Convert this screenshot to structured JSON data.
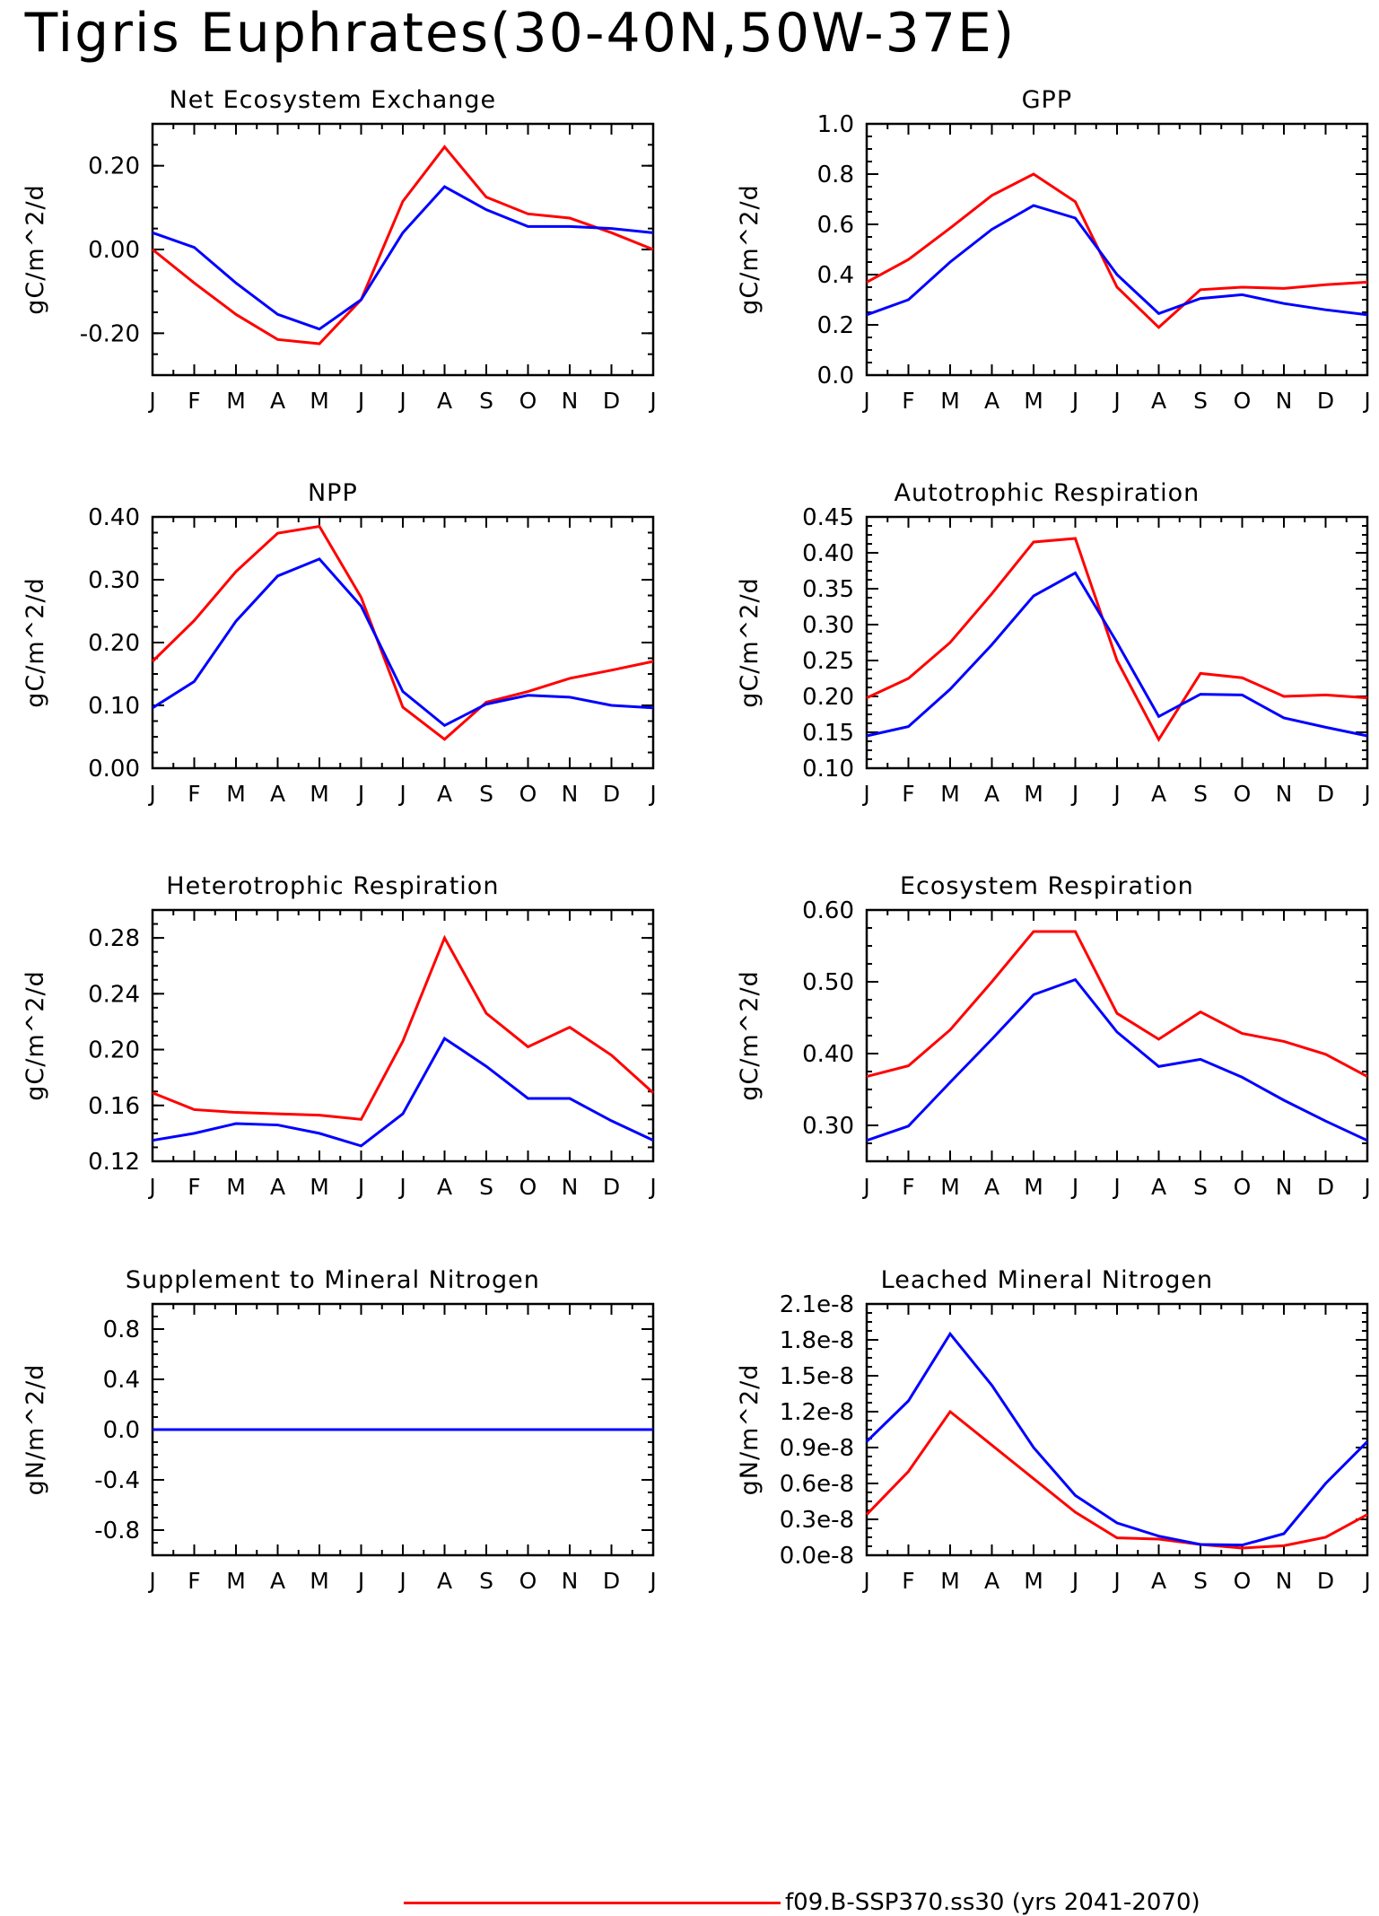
{
  "title": "Tigris Euphrates(30-40N,50W-37E)",
  "legend": {
    "label": "f09.B-SSP370.ss30 (yrs 2041-2070)",
    "color": "#ff0000"
  },
  "colors": {
    "red": "#ff0000",
    "blue": "#0000ff"
  },
  "chart_data": [
    {
      "type": "line",
      "title": "Net Ecosystem Exchange",
      "ylabel": "gC/m^2/d",
      "categories": [
        "J",
        "F",
        "M",
        "A",
        "M",
        "J",
        "J",
        "A",
        "S",
        "O",
        "N",
        "D",
        "J"
      ],
      "ylim": [
        -0.3,
        0.3
      ],
      "yticks": [
        -0.2,
        0.0,
        0.2
      ],
      "ytick_labels": [
        "-0.20",
        "0.00",
        "0.20"
      ],
      "series": [
        {
          "color": "#ff0000",
          "values": [
            0.0,
            -0.08,
            -0.155,
            -0.215,
            -0.225,
            -0.12,
            0.115,
            0.245,
            0.125,
            0.085,
            0.075,
            0.04,
            0.0
          ]
        },
        {
          "color": "#0000ff",
          "values": [
            0.04,
            0.005,
            -0.08,
            -0.155,
            -0.19,
            -0.12,
            0.04,
            0.15,
            0.095,
            0.055,
            0.055,
            0.05,
            0.04
          ]
        }
      ]
    },
    {
      "type": "line",
      "title": "GPP",
      "ylabel": "gC/m^2/d",
      "categories": [
        "J",
        "F",
        "M",
        "A",
        "M",
        "J",
        "J",
        "A",
        "S",
        "O",
        "N",
        "D",
        "J"
      ],
      "ylim": [
        0.0,
        1.0
      ],
      "yticks": [
        0.0,
        0.2,
        0.4,
        0.6,
        0.8,
        1.0
      ],
      "ytick_labels": [
        "0.0",
        "0.2",
        "0.4",
        "0.6",
        "0.8",
        "1.0"
      ],
      "series": [
        {
          "color": "#ff0000",
          "values": [
            0.37,
            0.46,
            0.585,
            0.715,
            0.8,
            0.69,
            0.35,
            0.19,
            0.34,
            0.35,
            0.345,
            0.36,
            0.37
          ]
        },
        {
          "color": "#0000ff",
          "values": [
            0.24,
            0.3,
            0.45,
            0.58,
            0.675,
            0.625,
            0.4,
            0.245,
            0.305,
            0.32,
            0.285,
            0.26,
            0.24
          ]
        }
      ]
    },
    {
      "type": "line",
      "title": "NPP",
      "ylabel": "gC/m^2/d",
      "categories": [
        "J",
        "F",
        "M",
        "A",
        "M",
        "J",
        "J",
        "A",
        "S",
        "O",
        "N",
        "D",
        "J"
      ],
      "ylim": [
        0.0,
        0.4
      ],
      "yticks": [
        0.0,
        0.1,
        0.2,
        0.3,
        0.4
      ],
      "ytick_labels": [
        "0.00",
        "0.10",
        "0.20",
        "0.30",
        "0.40"
      ],
      "series": [
        {
          "color": "#ff0000",
          "values": [
            0.17,
            0.235,
            0.313,
            0.374,
            0.385,
            0.272,
            0.097,
            0.046,
            0.105,
            0.122,
            0.143,
            0.156,
            0.17
          ]
        },
        {
          "color": "#0000ff",
          "values": [
            0.096,
            0.138,
            0.234,
            0.306,
            0.333,
            0.258,
            0.122,
            0.068,
            0.102,
            0.116,
            0.113,
            0.1,
            0.096
          ]
        }
      ]
    },
    {
      "type": "line",
      "title": "Autotrophic Respiration",
      "ylabel": "gC/m^2/d",
      "categories": [
        "J",
        "F",
        "M",
        "A",
        "M",
        "J",
        "J",
        "A",
        "S",
        "O",
        "N",
        "D",
        "J"
      ],
      "ylim": [
        0.1,
        0.45
      ],
      "yticks": [
        0.1,
        0.15,
        0.2,
        0.25,
        0.3,
        0.35,
        0.4,
        0.45
      ],
      "ytick_labels": [
        "0.10",
        "0.15",
        "0.20",
        "0.25",
        "0.30",
        "0.35",
        "0.40",
        "0.45"
      ],
      "series": [
        {
          "color": "#ff0000",
          "values": [
            0.198,
            0.225,
            0.275,
            0.343,
            0.415,
            0.42,
            0.25,
            0.14,
            0.232,
            0.226,
            0.2,
            0.202,
            0.198
          ]
        },
        {
          "color": "#0000ff",
          "values": [
            0.145,
            0.158,
            0.21,
            0.272,
            0.34,
            0.372,
            0.275,
            0.172,
            0.203,
            0.202,
            0.17,
            0.157,
            0.145
          ]
        }
      ]
    },
    {
      "type": "line",
      "title": "Heterotrophic Respiration",
      "ylabel": "gC/m^2/d",
      "categories": [
        "J",
        "F",
        "M",
        "A",
        "M",
        "J",
        "J",
        "A",
        "S",
        "O",
        "N",
        "D",
        "J"
      ],
      "ylim": [
        0.12,
        0.3
      ],
      "yticks": [
        0.12,
        0.16,
        0.2,
        0.24,
        0.28
      ],
      "ytick_labels": [
        "0.12",
        "0.16",
        "0.20",
        "0.24",
        "0.28"
      ],
      "series": [
        {
          "color": "#ff0000",
          "values": [
            0.169,
            0.157,
            0.155,
            0.154,
            0.153,
            0.15,
            0.206,
            0.28,
            0.226,
            0.202,
            0.216,
            0.196,
            0.169
          ]
        },
        {
          "color": "#0000ff",
          "values": [
            0.135,
            0.14,
            0.147,
            0.146,
            0.14,
            0.131,
            0.154,
            0.208,
            0.188,
            0.165,
            0.165,
            0.149,
            0.135
          ]
        }
      ]
    },
    {
      "type": "line",
      "title": "Ecosystem Respiration",
      "ylabel": "gC/m^2/d",
      "categories": [
        "J",
        "F",
        "M",
        "A",
        "M",
        "J",
        "J",
        "A",
        "S",
        "O",
        "N",
        "D",
        "J"
      ],
      "ylim": [
        0.25,
        0.6
      ],
      "yticks": [
        0.3,
        0.4,
        0.5,
        0.6
      ],
      "ytick_labels": [
        "0.30",
        "0.40",
        "0.50",
        "0.60"
      ],
      "series": [
        {
          "color": "#ff0000",
          "values": [
            0.368,
            0.383,
            0.433,
            0.5,
            0.57,
            0.57,
            0.456,
            0.42,
            0.458,
            0.428,
            0.417,
            0.399,
            0.368
          ]
        },
        {
          "color": "#0000ff",
          "values": [
            0.279,
            0.299,
            0.36,
            0.42,
            0.482,
            0.503,
            0.43,
            0.382,
            0.392,
            0.367,
            0.335,
            0.306,
            0.279
          ]
        }
      ]
    },
    {
      "type": "line",
      "title": "Supplement to Mineral Nitrogen",
      "ylabel": "gN/m^2/d",
      "categories": [
        "J",
        "F",
        "M",
        "A",
        "M",
        "J",
        "J",
        "A",
        "S",
        "O",
        "N",
        "D",
        "J"
      ],
      "ylim": [
        -1.0,
        1.0
      ],
      "yticks": [
        -0.8,
        -0.4,
        0.0,
        0.4,
        0.8
      ],
      "ytick_labels": [
        "-0.8",
        "-0.4",
        "0.0",
        "0.4",
        "0.8"
      ],
      "series": [
        {
          "color": "#ff0000",
          "values": [
            0,
            0,
            0,
            0,
            0,
            0,
            0,
            0,
            0,
            0,
            0,
            0,
            0
          ]
        },
        {
          "color": "#0000ff",
          "values": [
            0,
            0,
            0,
            0,
            0,
            0,
            0,
            0,
            0,
            0,
            0,
            0,
            0
          ]
        }
      ]
    },
    {
      "type": "line",
      "title": "Leached Mineral Nitrogen",
      "ylabel": "gN/m^2/d",
      "categories": [
        "J",
        "F",
        "M",
        "A",
        "M",
        "J",
        "J",
        "A",
        "S",
        "O",
        "N",
        "D",
        "J"
      ],
      "ylim": [
        0.0,
        2.1e-08
      ],
      "yticks": [
        0.0,
        3e-09,
        6e-09,
        9e-09,
        1.2e-08,
        1.5e-08,
        1.8e-08,
        2.1e-08
      ],
      "ytick_labels": [
        "0.0e-8",
        "0.3e-8",
        "0.6e-8",
        "0.9e-8",
        "1.2e-8",
        "1.5e-8",
        "1.8e-8",
        "2.1e-8"
      ],
      "series": [
        {
          "color": "#ff0000",
          "values": [
            3.4e-09,
            7e-09,
            1.2e-08,
            9.2e-09,
            6.4e-09,
            3.6e-09,
            1.45e-09,
            1.35e-09,
            9e-10,
            6e-10,
            8e-10,
            1.5e-09,
            3.4e-09
          ]
        },
        {
          "color": "#0000ff",
          "values": [
            9.5e-09,
            1.29e-08,
            1.85e-08,
            1.42e-08,
            9e-09,
            5e-09,
            2.7e-09,
            1.6e-09,
            9e-10,
            8.5e-10,
            1.8e-09,
            6e-09,
            9.5e-09
          ]
        }
      ]
    }
  ]
}
